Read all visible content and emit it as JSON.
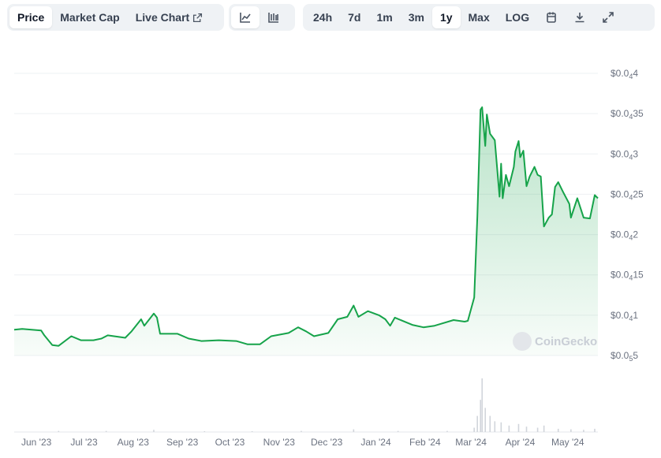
{
  "toolbar": {
    "tabs": [
      {
        "label": "Price",
        "active": true
      },
      {
        "label": "Market Cap",
        "active": false
      },
      {
        "label": "Live Chart",
        "active": false,
        "icon": "external-link-icon"
      }
    ],
    "chart_types": [
      {
        "icon": "line-chart-icon",
        "active": true
      },
      {
        "icon": "candlestick-chart-icon",
        "active": false
      }
    ],
    "ranges": [
      {
        "label": "24h"
      },
      {
        "label": "7d"
      },
      {
        "label": "1m"
      },
      {
        "label": "3m"
      },
      {
        "label": "1y",
        "active": true
      },
      {
        "label": "Max"
      },
      {
        "label": "LOG"
      }
    ],
    "actions": [
      {
        "icon": "calendar-icon"
      },
      {
        "icon": "download-icon"
      },
      {
        "icon": "expand-icon"
      }
    ]
  },
  "watermark": "CoinGecko",
  "colors": {
    "line": "#16a34a",
    "fill": "#16a34a",
    "grid": "#eef0f3",
    "volume": "#d1d5db"
  },
  "chart_data": {
    "type": "area",
    "xlim": [
      "2023-05-18",
      "2024-05-20"
    ],
    "ylim": [
      5e-06,
      4e-05
    ],
    "grid": true,
    "y_ticks": [
      {
        "value": 4e-05,
        "label": "$0.0",
        "sub": "4",
        "rest": "4"
      },
      {
        "value": 3.5e-05,
        "label": "$0.0",
        "sub": "4",
        "rest": "35"
      },
      {
        "value": 3e-05,
        "label": "$0.0",
        "sub": "4",
        "rest": "3"
      },
      {
        "value": 2.5e-05,
        "label": "$0.0",
        "sub": "4",
        "rest": "25"
      },
      {
        "value": 2e-05,
        "label": "$0.0",
        "sub": "4",
        "rest": "2"
      },
      {
        "value": 1.5e-05,
        "label": "$0.0",
        "sub": "4",
        "rest": "15"
      },
      {
        "value": 1e-05,
        "label": "$0.0",
        "sub": "4",
        "rest": "1"
      },
      {
        "value": 5e-06,
        "label": "$0.0",
        "sub": "5",
        "rest": "5"
      }
    ],
    "x_ticks": [
      {
        "date": "2023-06-01",
        "label": "Jun '23"
      },
      {
        "date": "2023-07-01",
        "label": "Jul '23"
      },
      {
        "date": "2023-08-01",
        "label": "Aug '23"
      },
      {
        "date": "2023-09-01",
        "label": "Sep '23"
      },
      {
        "date": "2023-10-01",
        "label": "Oct '23"
      },
      {
        "date": "2023-11-01",
        "label": "Nov '23"
      },
      {
        "date": "2023-12-01",
        "label": "Dec '23"
      },
      {
        "date": "2024-01-01",
        "label": "Jan '24"
      },
      {
        "date": "2024-02-01",
        "label": "Feb '24"
      },
      {
        "date": "2024-03-01",
        "label": "Mar '24"
      },
      {
        "date": "2024-04-01",
        "label": "Apr '24"
      },
      {
        "date": "2024-05-01",
        "label": "May '24"
      }
    ],
    "series": [
      {
        "points": [
          [
            "2023-05-18",
            8.2e-06
          ],
          [
            "2023-05-23",
            8.3e-06
          ],
          [
            "2023-06-04",
            8.1e-06
          ],
          [
            "2023-06-06",
            7.5e-06
          ],
          [
            "2023-06-11",
            6.3e-06
          ],
          [
            "2023-06-15",
            6.2e-06
          ],
          [
            "2023-06-23",
            7.4e-06
          ],
          [
            "2023-06-29",
            6.9e-06
          ],
          [
            "2023-07-07",
            6.9e-06
          ],
          [
            "2023-07-12",
            7.1e-06
          ],
          [
            "2023-07-16",
            7.5e-06
          ],
          [
            "2023-07-27",
            7.2e-06
          ],
          [
            "2023-07-31",
            8e-06
          ],
          [
            "2023-08-06",
            9.5e-06
          ],
          [
            "2023-08-08",
            8.7e-06
          ],
          [
            "2023-08-14",
            1.02e-05
          ],
          [
            "2023-08-16",
            9.7e-06
          ],
          [
            "2023-08-18",
            7.7e-06
          ],
          [
            "2023-08-29",
            7.7e-06
          ],
          [
            "2023-09-05",
            7.1e-06
          ],
          [
            "2023-09-13",
            6.8e-06
          ],
          [
            "2023-09-24",
            6.9e-06
          ],
          [
            "2023-10-05",
            6.8e-06
          ],
          [
            "2023-10-12",
            6.4e-06
          ],
          [
            "2023-10-20",
            6.4e-06
          ],
          [
            "2023-10-27",
            7.4e-06
          ],
          [
            "2023-11-07",
            7.8e-06
          ],
          [
            "2023-11-13",
            8.5e-06
          ],
          [
            "2023-11-18",
            8e-06
          ],
          [
            "2023-11-23",
            7.4e-06
          ],
          [
            "2023-12-02",
            7.8e-06
          ],
          [
            "2023-12-08",
            9.5e-06
          ],
          [
            "2023-12-14",
            9.8e-06
          ],
          [
            "2023-12-18",
            1.12e-05
          ],
          [
            "2023-12-21",
            9.8e-06
          ],
          [
            "2023-12-27",
            1.05e-05
          ],
          [
            "2024-01-03",
            1e-05
          ],
          [
            "2024-01-07",
            9.5e-06
          ],
          [
            "2024-01-10",
            8.7e-06
          ],
          [
            "2024-01-13",
            9.7e-06
          ],
          [
            "2024-01-24",
            8.8e-06
          ],
          [
            "2024-01-31",
            8.5e-06
          ],
          [
            "2024-02-07",
            8.7e-06
          ],
          [
            "2024-02-19",
            9.4e-06
          ],
          [
            "2024-02-26",
            9.2e-06
          ],
          [
            "2024-02-28",
            9.3e-06
          ],
          [
            "2024-03-03",
            1.22e-05
          ],
          [
            "2024-03-05",
            2.23e-05
          ],
          [
            "2024-03-07",
            3.55e-05
          ],
          [
            "2024-03-08",
            3.58e-05
          ],
          [
            "2024-03-10",
            3.1e-05
          ],
          [
            "2024-03-11",
            3.49e-05
          ],
          [
            "2024-03-13",
            3.25e-05
          ],
          [
            "2024-03-16",
            3.17e-05
          ],
          [
            "2024-03-19",
            2.47e-05
          ],
          [
            "2024-03-20",
            2.88e-05
          ],
          [
            "2024-03-21",
            2.45e-05
          ],
          [
            "2024-03-23",
            2.74e-05
          ],
          [
            "2024-03-25",
            2.6e-05
          ],
          [
            "2024-03-28",
            2.84e-05
          ],
          [
            "2024-03-29",
            3.03e-05
          ],
          [
            "2024-03-31",
            3.16e-05
          ],
          [
            "2024-04-01",
            2.96e-05
          ],
          [
            "2024-04-03",
            3.04e-05
          ],
          [
            "2024-04-05",
            2.6e-05
          ],
          [
            "2024-04-07",
            2.72e-05
          ],
          [
            "2024-04-10",
            2.84e-05
          ],
          [
            "2024-04-12",
            2.74e-05
          ],
          [
            "2024-04-14",
            2.72e-05
          ],
          [
            "2024-04-16",
            2.1e-05
          ],
          [
            "2024-04-19",
            2.21e-05
          ],
          [
            "2024-04-21",
            2.25e-05
          ],
          [
            "2024-04-23",
            2.59e-05
          ],
          [
            "2024-04-25",
            2.65e-05
          ],
          [
            "2024-04-28",
            2.53e-05
          ],
          [
            "2024-05-02",
            2.38e-05
          ],
          [
            "2024-05-03",
            2.21e-05
          ],
          [
            "2024-05-07",
            2.45e-05
          ],
          [
            "2024-05-11",
            2.21e-05
          ],
          [
            "2024-05-15",
            2.2e-05
          ],
          [
            "2024-05-18",
            2.49e-05
          ],
          [
            "2024-05-20",
            2.45e-05
          ]
        ]
      }
    ],
    "volume_relative": [
      [
        "2023-06-15",
        2
      ],
      [
        "2023-07-15",
        2
      ],
      [
        "2023-08-14",
        4
      ],
      [
        "2023-09-15",
        1
      ],
      [
        "2023-10-15",
        1
      ],
      [
        "2023-11-15",
        2
      ],
      [
        "2023-12-18",
        5
      ],
      [
        "2024-01-15",
        2
      ],
      [
        "2024-02-15",
        2
      ],
      [
        "2024-03-03",
        8
      ],
      [
        "2024-03-05",
        30
      ],
      [
        "2024-03-07",
        60
      ],
      [
        "2024-03-08",
        100
      ],
      [
        "2024-03-10",
        45
      ],
      [
        "2024-03-13",
        30
      ],
      [
        "2024-03-16",
        20
      ],
      [
        "2024-03-20",
        18
      ],
      [
        "2024-03-25",
        12
      ],
      [
        "2024-03-31",
        15
      ],
      [
        "2024-04-05",
        10
      ],
      [
        "2024-04-12",
        8
      ],
      [
        "2024-04-16",
        12
      ],
      [
        "2024-04-25",
        6
      ],
      [
        "2024-05-03",
        5
      ],
      [
        "2024-05-11",
        4
      ],
      [
        "2024-05-18",
        6
      ]
    ]
  }
}
